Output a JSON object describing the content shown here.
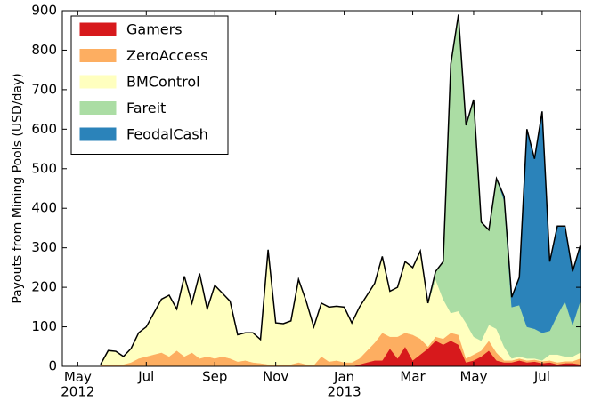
{
  "chart_data": {
    "type": "stacked_area",
    "y_label": "Payouts from Mining Pools (USD/day)",
    "categories": [
      "May\n2012",
      null,
      null,
      null,
      null,
      null,
      null,
      null,
      null,
      "Jul",
      null,
      null,
      null,
      null,
      null,
      null,
      null,
      null,
      "Sep",
      null,
      null,
      null,
      null,
      null,
      null,
      null,
      "Nov",
      null,
      null,
      null,
      null,
      null,
      null,
      null,
      null,
      "Jan\n2013",
      null,
      null,
      null,
      null,
      null,
      null,
      null,
      null,
      "Mar",
      null,
      null,
      null,
      null,
      null,
      null,
      null,
      "May",
      null,
      null,
      null,
      null,
      null,
      null,
      null,
      null,
      "Jul",
      null,
      null,
      null,
      null,
      null
    ],
    "series": [
      {
        "name": "Gamers",
        "color": "#d7191c",
        "values": [
          null,
          null,
          null,
          0,
          0,
          0,
          0,
          0,
          0,
          0,
          0,
          0,
          0,
          0,
          0,
          0,
          0,
          0,
          0,
          0,
          0,
          0,
          0,
          0,
          0,
          0,
          0,
          0,
          0,
          0,
          0,
          0,
          0,
          0,
          0,
          0,
          0,
          5,
          10,
          15,
          15,
          45,
          20,
          50,
          15,
          30,
          45,
          65,
          55,
          65,
          55,
          10,
          15,
          25,
          40,
          15,
          10,
          10,
          15,
          10,
          12,
          8,
          10,
          5,
          8,
          8,
          5
        ]
      },
      {
        "name": "ZeroAccess",
        "color": "#fdae61",
        "values": [
          null,
          null,
          null,
          3,
          5,
          5,
          5,
          10,
          20,
          25,
          30,
          35,
          25,
          40,
          25,
          35,
          20,
          25,
          20,
          25,
          20,
          12,
          15,
          10,
          8,
          5,
          5,
          5,
          5,
          10,
          5,
          3,
          25,
          12,
          15,
          10,
          10,
          15,
          30,
          45,
          70,
          30,
          55,
          35,
          65,
          40,
          5,
          10,
          15,
          20,
          25,
          10,
          15,
          15,
          25,
          20,
          5,
          5,
          5,
          5,
          5,
          5,
          5,
          5,
          5,
          5,
          15
        ]
      },
      {
        "name": "BMControl",
        "color": "#ffffbf",
        "values": [
          null,
          null,
          null,
          2,
          35,
          33,
          20,
          35,
          65,
          75,
          105,
          135,
          155,
          105,
          203,
          125,
          215,
          120,
          185,
          160,
          145,
          68,
          70,
          75,
          60,
          290,
          105,
          103,
          110,
          210,
          160,
          97,
          135,
          138,
          137,
          140,
          100,
          130,
          140,
          150,
          193,
          115,
          125,
          180,
          170,
          222,
          110,
          145,
          100,
          50,
          60,
          90,
          45,
          25,
          40,
          60,
          35,
          5,
          5,
          5,
          3,
          2,
          15,
          20,
          12,
          12,
          15
        ]
      },
      {
        "name": "Fareit",
        "color": "#abdda4",
        "values": [
          null,
          null,
          null,
          0,
          0,
          0,
          0,
          0,
          0,
          0,
          0,
          0,
          0,
          0,
          0,
          0,
          0,
          0,
          0,
          0,
          0,
          0,
          0,
          0,
          0,
          0,
          0,
          0,
          0,
          0,
          0,
          0,
          0,
          0,
          0,
          0,
          0,
          0,
          0,
          0,
          0,
          0,
          0,
          0,
          0,
          0,
          0,
          20,
          95,
          630,
          750,
          500,
          600,
          300,
          240,
          380,
          370,
          130,
          130,
          80,
          75,
          70,
          60,
          100,
          140,
          80,
          130
        ]
      },
      {
        "name": "FeodalCash",
        "color": "#2b83ba",
        "values": [
          null,
          null,
          null,
          0,
          0,
          0,
          0,
          0,
          0,
          0,
          0,
          0,
          0,
          0,
          0,
          0,
          0,
          0,
          0,
          0,
          0,
          0,
          0,
          0,
          0,
          0,
          0,
          0,
          0,
          0,
          0,
          0,
          0,
          0,
          0,
          0,
          0,
          0,
          0,
          0,
          0,
          0,
          0,
          0,
          0,
          0,
          0,
          0,
          0,
          0,
          0,
          0,
          0,
          0,
          0,
          0,
          10,
          25,
          70,
          500,
          430,
          560,
          175,
          225,
          190,
          135,
          140
        ]
      }
    ],
    "ylim": [
      0,
      900
    ],
    "yticks": [
      0,
      100,
      200,
      300,
      400,
      500,
      600,
      700,
      800,
      900
    ],
    "legend": "upper left"
  }
}
